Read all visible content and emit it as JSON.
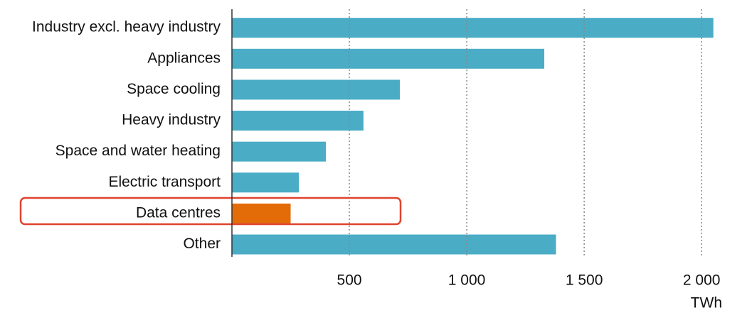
{
  "chart_data": {
    "type": "bar",
    "orientation": "horizontal",
    "categories": [
      "Industry excl. heavy industry",
      "Appliances",
      "Space cooling",
      "Heavy industry",
      "Space and water heating",
      "Electric transport",
      "Data centres",
      "Other"
    ],
    "values": [
      2050,
      1330,
      715,
      560,
      400,
      285,
      250,
      1380
    ],
    "colors": [
      "#4bacc6",
      "#4bacc6",
      "#4bacc6",
      "#4bacc6",
      "#4bacc6",
      "#4bacc6",
      "#e36c09",
      "#4bacc6"
    ],
    "xlim": [
      0,
      2160
    ],
    "xticks": [
      500,
      {
        "value": 1000,
        "label": "1 000"
      },
      {
        "value": 1500,
        "label": "1 500"
      },
      {
        "value": 2000,
        "label": "2 000"
      }
    ],
    "x_unit": "TWh",
    "grid": true
  }
}
